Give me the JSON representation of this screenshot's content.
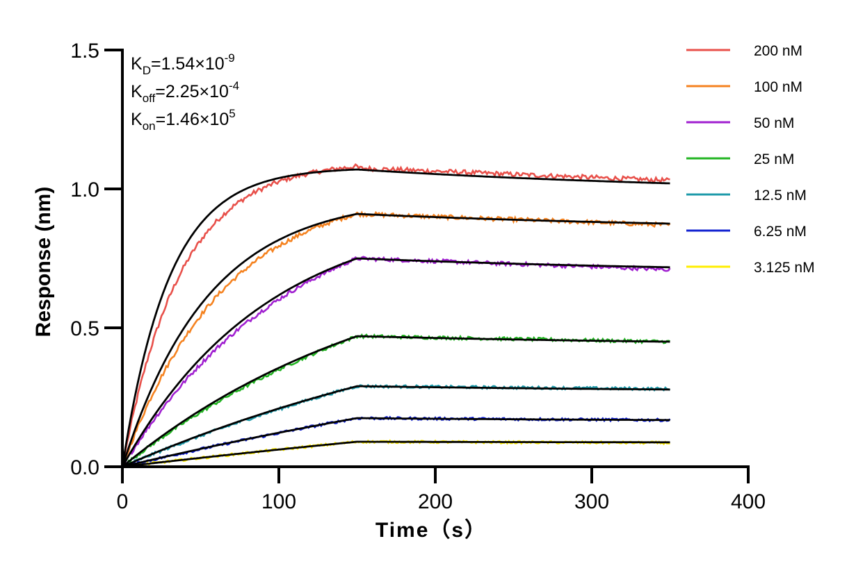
{
  "chart_data": {
    "type": "line",
    "title": "",
    "xlabel": "Time（s）",
    "ylabel": "Response (nm)",
    "xlim": [
      0,
      400
    ],
    "ylim": [
      0,
      1.5
    ],
    "x_ticks": [
      "0",
      "100",
      "200",
      "300",
      "400"
    ],
    "y_ticks": [
      "0.0",
      "0.5",
      "1.0",
      "1.5"
    ],
    "grid": false,
    "legend_position": "top-right",
    "association_end": 150,
    "dissociation_end": 350,
    "annotations": [
      {
        "base": "K",
        "sub": "D",
        "value": "=1.54×10",
        "exp": "-9"
      },
      {
        "base": "K",
        "sub": "off",
        "value": "=2.25×10",
        "exp": "-4"
      },
      {
        "base": "K",
        "sub": "on",
        "value": "=1.46×10",
        "exp": "5"
      }
    ],
    "fit_color": "#000000",
    "series": [
      {
        "name": "200 nM",
        "color": "#e8504a",
        "plateau": 1.07,
        "end": 1.03,
        "fit_end": 1.02,
        "kobs": 0.0334
      },
      {
        "name": "100 nM",
        "color": "#f5821f",
        "plateau": 0.91,
        "end": 0.87,
        "fit_end": 0.875,
        "kobs": 0.0183
      },
      {
        "name": "50 nM",
        "color": "#a020d0",
        "plateau": 0.75,
        "end": 0.71,
        "fit_end": 0.718,
        "kobs": 0.0108
      },
      {
        "name": "25 nM",
        "color": "#22b422",
        "plateau": 0.47,
        "end": 0.45,
        "fit_end": 0.45,
        "kobs": 0.0058
      },
      {
        "name": "12.5 nM",
        "color": "#1e9aaa",
        "plateau": 0.29,
        "end": 0.28,
        "fit_end": 0.278,
        "kobs": 0.0035
      },
      {
        "name": "6.25 nM",
        "color": "#1020d0",
        "plateau": 0.175,
        "end": 0.168,
        "fit_end": 0.168,
        "kobs": 0.002
      },
      {
        "name": "3.125 nM",
        "color": "#ffee00",
        "plateau": 0.09,
        "end": 0.086,
        "fit_end": 0.088,
        "kobs": 0.0013
      }
    ]
  }
}
